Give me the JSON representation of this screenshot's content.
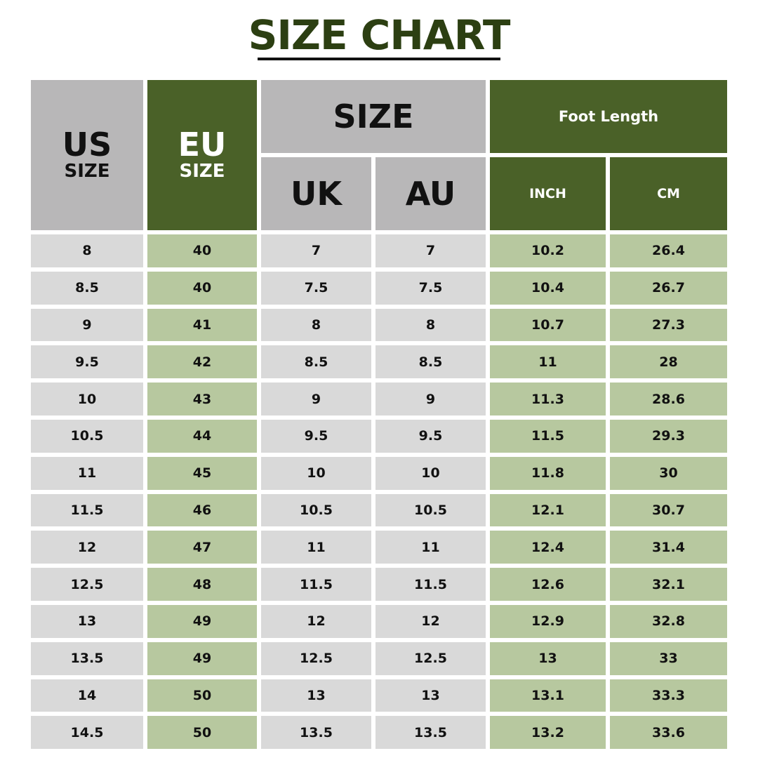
{
  "title": "SIZE CHART",
  "colors": {
    "title": "#2c3f12",
    "header_gray": "#b8b7b8",
    "header_green": "#4a6128",
    "cell_gray": "#d9d9d9",
    "cell_green": "#b7c89f"
  },
  "headers": {
    "us": "US",
    "us_sub": "SIZE",
    "eu": "EU",
    "eu_sub": "SIZE",
    "size": "SIZE",
    "uk": "UK",
    "au": "AU",
    "foot_length": "Foot Length",
    "inch": "INCH",
    "cm": "CM"
  },
  "rows": [
    [
      "8",
      "40",
      "7",
      "7",
      "10.2",
      "26.4"
    ],
    [
      "8.5",
      "40",
      "7.5",
      "7.5",
      "10.4",
      "26.7"
    ],
    [
      "9",
      "41",
      "8",
      "8",
      "10.7",
      "27.3"
    ],
    [
      "9.5",
      "42",
      "8.5",
      "8.5",
      "11",
      "28"
    ],
    [
      "10",
      "43",
      "9",
      "9",
      "11.3",
      "28.6"
    ],
    [
      "10.5",
      "44",
      "9.5",
      "9.5",
      "11.5",
      "29.3"
    ],
    [
      "11",
      "45",
      "10",
      "10",
      "11.8",
      "30"
    ],
    [
      "11.5",
      "46",
      "10.5",
      "10.5",
      "12.1",
      "30.7"
    ],
    [
      "12",
      "47",
      "11",
      "11",
      "12.4",
      "31.4"
    ],
    [
      "12.5",
      "48",
      "11.5",
      "11.5",
      "12.6",
      "32.1"
    ],
    [
      "13",
      "49",
      "12",
      "12",
      "12.9",
      "32.8"
    ],
    [
      "13.5",
      "49",
      "12.5",
      "12.5",
      "13",
      "33"
    ],
    [
      "14",
      "50",
      "13",
      "13",
      "13.1",
      "33.3"
    ],
    [
      "14.5",
      "50",
      "13.5",
      "13.5",
      "13.2",
      "33.6"
    ]
  ]
}
